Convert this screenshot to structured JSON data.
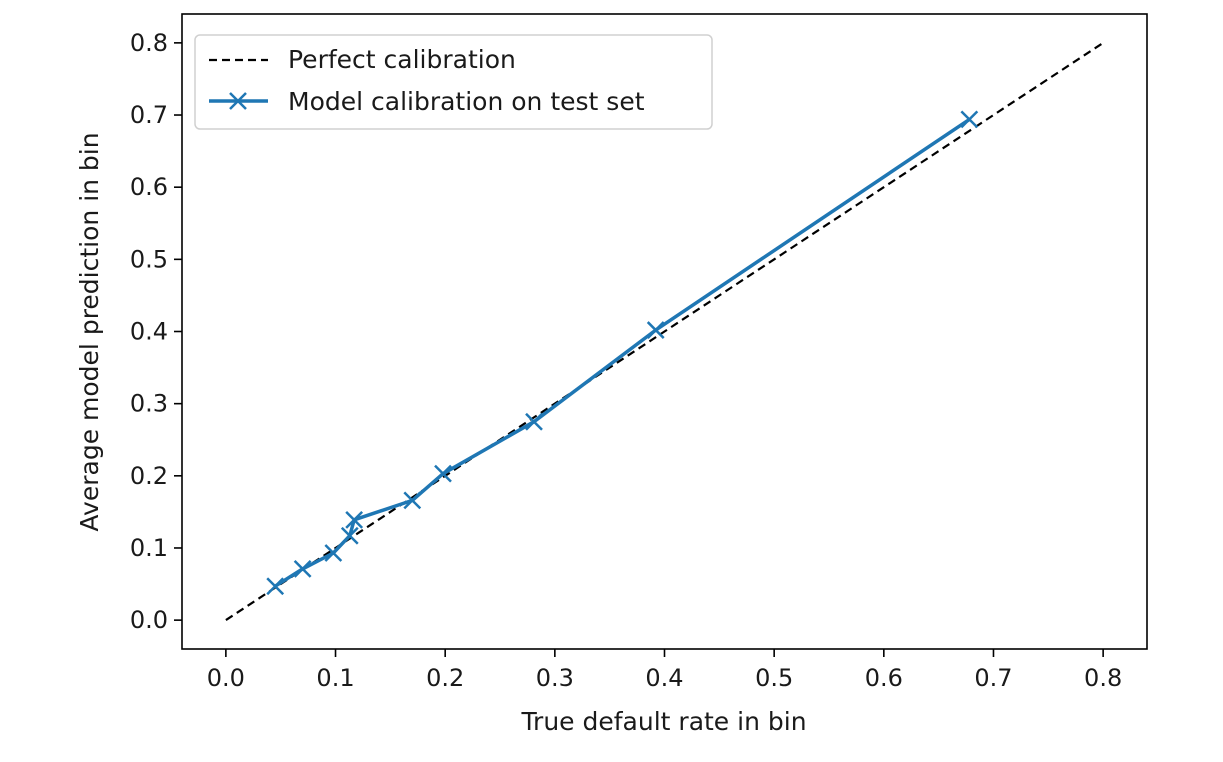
{
  "chart_data": {
    "type": "line",
    "title": "",
    "xlabel": "True default rate in bin",
    "ylabel": "Average model prediction in bin",
    "xlim": [
      -0.04,
      0.84
    ],
    "ylim": [
      -0.04,
      0.84
    ],
    "xticks": [
      "0.0",
      "0.1",
      "0.2",
      "0.3",
      "0.4",
      "0.5",
      "0.6",
      "0.7",
      "0.8"
    ],
    "yticks": [
      "0.0",
      "0.1",
      "0.2",
      "0.3",
      "0.4",
      "0.5",
      "0.6",
      "0.7",
      "0.8"
    ],
    "grid": false,
    "legend_position": "top-left",
    "series": [
      {
        "name": "Perfect calibration",
        "style": "dashed",
        "color": "#000000",
        "x": [
          0.0,
          0.8
        ],
        "y": [
          0.0,
          0.8
        ]
      },
      {
        "name": "Model calibration on test set",
        "style": "solid",
        "marker": "x",
        "color": "#1f77b4",
        "x": [
          0.045,
          0.07,
          0.098,
          0.113,
          0.117,
          0.17,
          0.198,
          0.281,
          0.392,
          0.678
        ],
        "y": [
          0.047,
          0.071,
          0.093,
          0.117,
          0.139,
          0.166,
          0.203,
          0.275,
          0.402,
          0.694
        ]
      }
    ]
  }
}
